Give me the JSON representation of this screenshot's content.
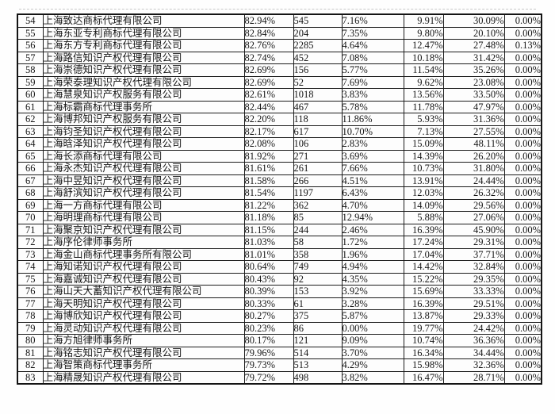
{
  "page": {
    "background_color": "#ffffff",
    "text_color": "#161616",
    "border_color": "#141414"
  },
  "table": {
    "row_range": {
      "first_rank": "54",
      "last_rank": "83"
    },
    "rows": [
      [
        "54",
        "上海致达商标代理有限公司",
        "82.94%",
        "545",
        "7.16%",
        "9.91%",
        "30.09%",
        "0.00%"
      ],
      [
        "55",
        "上海东亚专利商标代理有限公司",
        "82.84%",
        "204",
        "7.35%",
        "9.80%",
        "20.10%",
        "0.00%"
      ],
      [
        "56",
        "上海东方专利商标代理有限公司",
        "82.76%",
        "2285",
        "4.64%",
        "12.47%",
        "27.48%",
        "0.13%"
      ],
      [
        "57",
        "上海路信知识产权代理有限公司",
        "82.74%",
        "452",
        "7.08%",
        "10.18%",
        "31.42%",
        "0.00%"
      ],
      [
        "58",
        "上海崇德知识产权代理有限公司",
        "82.69%",
        "156",
        "5.77%",
        "11.54%",
        "35.26%",
        "0.00%"
      ],
      [
        "59",
        "上海荣泰理知识产权代理有限公司",
        "82.69%",
        "52",
        "7.69%",
        "9.62%",
        "23.08%",
        "0.00%"
      ],
      [
        "60",
        "上海慧泉知识产权服务有限公司",
        "82.61%",
        "1018",
        "3.83%",
        "13.56%",
        "33.50%",
        "0.00%"
      ],
      [
        "61",
        "上海标霸商标代理事务所",
        "82.44%",
        "467",
        "5.78%",
        "11.78%",
        "47.97%",
        "0.00%"
      ],
      [
        "62",
        "上海博邦知识产权服务有限公司",
        "82.20%",
        "118",
        "11.86%",
        "5.93%",
        "31.36%",
        "0.00%"
      ],
      [
        "63",
        "上海钧圣知识产权代理有限公司",
        "82.17%",
        "617",
        "10.70%",
        "7.13%",
        "27.55%",
        "0.00%"
      ],
      [
        "64",
        "上海晗泽知识产权代理有限公司",
        "82.08%",
        "106",
        "2.83%",
        "15.09%",
        "48.11%",
        "0.00%"
      ],
      [
        "65",
        "上海长添商标代理有限公司",
        "81.92%",
        "271",
        "3.69%",
        "14.39%",
        "26.20%",
        "0.00%"
      ],
      [
        "66",
        "上海永杰知识产权代理有限公司",
        "81.61%",
        "261",
        "7.66%",
        "10.73%",
        "31.80%",
        "0.00%"
      ],
      [
        "67",
        "上海中昱知识产权代理有限公司",
        "81.58%",
        "266",
        "4.51%",
        "13.91%",
        "24.44%",
        "0.00%"
      ],
      [
        "68",
        "上海舒滨知识产权代理有限公司",
        "81.54%",
        "1197",
        "6.43%",
        "12.03%",
        "26.32%",
        "0.00%"
      ],
      [
        "69",
        "上海一方商标代理有限公司",
        "81.22%",
        "362",
        "4.70%",
        "14.09%",
        "29.56%",
        "0.00%"
      ],
      [
        "70",
        "上海明理商标代理有限公司",
        "81.18%",
        "85",
        "12.94%",
        "5.88%",
        "27.06%",
        "0.00%"
      ],
      [
        "71",
        "上海聚京知识产权代理有限公司",
        "81.15%",
        "244",
        "2.46%",
        "16.39%",
        "45.90%",
        "0.00%"
      ],
      [
        "72",
        "上海序伦律师事务所",
        "81.03%",
        "58",
        "1.72%",
        "17.24%",
        "29.31%",
        "0.00%"
      ],
      [
        "73",
        "上海金山商标代理事务所有限公司",
        "81.01%",
        "358",
        "1.96%",
        "17.04%",
        "37.71%",
        "0.00%"
      ],
      [
        "74",
        "上海知诺知识产权代理有限公司",
        "80.64%",
        "749",
        "4.94%",
        "14.42%",
        "32.84%",
        "0.00%"
      ],
      [
        "75",
        "上海嘉诚知识产权代理有限公司",
        "80.43%",
        "92",
        "4.35%",
        "15.22%",
        "29.35%",
        "0.00%"
      ],
      [
        "76",
        "上海山天大蓄知识产权代理有限公司",
        "80.39%",
        "153",
        "3.92%",
        "15.69%",
        "33.33%",
        "0.00%"
      ],
      [
        "77",
        "上海天明知识产权代理有限公司",
        "80.33%",
        "61",
        "3.28%",
        "16.39%",
        "29.51%",
        "0.00%"
      ],
      [
        "78",
        "上海博欣知识产权代理有限公司",
        "80.27%",
        "375",
        "5.87%",
        "13.87%",
        "29.33%",
        "0.00%"
      ],
      [
        "79",
        "上海灵动知识产权代理有限公司",
        "80.23%",
        "86",
        "0.00%",
        "19.77%",
        "24.42%",
        "0.00%"
      ],
      [
        "80",
        "上海方旭律师事务所",
        "80.17%",
        "121",
        "9.09%",
        "10.74%",
        "36.36%",
        "0.00%"
      ],
      [
        "81",
        "上海铭志知识产权代理有限公司",
        "79.96%",
        "514",
        "3.70%",
        "16.34%",
        "34.44%",
        "0.00%"
      ],
      [
        "82",
        "上海智策商标代理事务所",
        "79.73%",
        "513",
        "4.29%",
        "15.98%",
        "32.36%",
        "0.00%"
      ],
      [
        "83",
        "上海精晟知识产权代理有限公司",
        "79.72%",
        "498",
        "3.82%",
        "16.47%",
        "28.71%",
        "0.00%"
      ]
    ]
  }
}
